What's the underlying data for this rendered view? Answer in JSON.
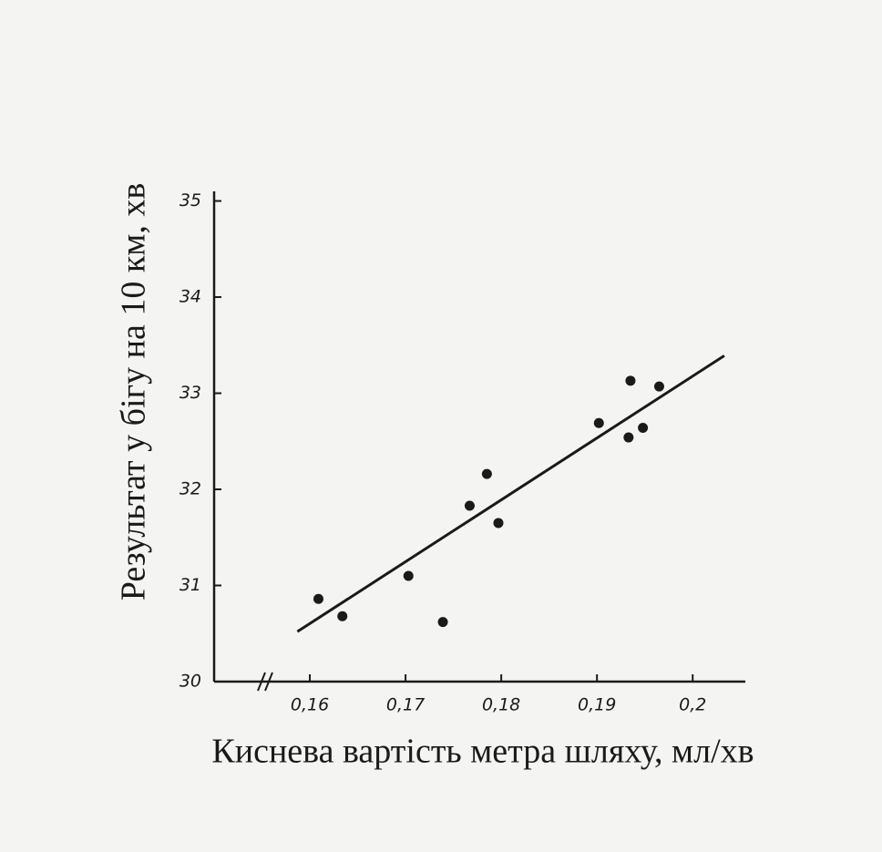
{
  "chart_data": {
    "type": "scatter",
    "x_label": "Киснева вартість метра шляху, мл/хв",
    "y_label": "Результат у бігу на 10 км, хв",
    "x": [
      0.1609,
      0.1634,
      0.1703,
      0.1739,
      0.1767,
      0.1785,
      0.1797,
      0.1902,
      0.1935,
      0.1933,
      0.1948,
      0.1965
    ],
    "y": [
      30.86,
      30.68,
      31.1,
      30.62,
      31.83,
      32.16,
      31.65,
      32.69,
      33.13,
      32.54,
      32.64,
      33.07
    ],
    "color": "#1a1a1a",
    "trend_line": {
      "x": [
        0.1587,
        0.2033
      ],
      "y": [
        30.52,
        33.39
      ]
    },
    "xlim": [
      0.15,
      0.2055
    ],
    "ylim": [
      30,
      35.1
    ],
    "xticks": [
      {
        "value": 0.16,
        "label": "0,16"
      },
      {
        "value": 0.17,
        "label": "0,17"
      },
      {
        "value": 0.18,
        "label": "0,18"
      },
      {
        "value": 0.19,
        "label": "0,19"
      },
      {
        "value": 0.2,
        "label": "0,2"
      }
    ],
    "yticks": [
      30,
      31,
      32,
      33,
      34,
      35
    ],
    "grid": false
  }
}
